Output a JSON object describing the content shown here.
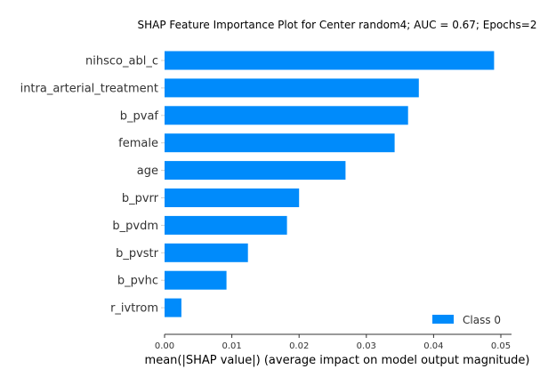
{
  "chart_data": {
    "type": "bar",
    "orientation": "horizontal",
    "title": "SHAP Feature Importance Plot for Center random4; AUC = 0.67; Epochs=2",
    "xlabel": "mean(|SHAP value|) (average impact on model output magnitude)",
    "ylabel": "",
    "categories": [
      "nihsco_abl_c",
      "intra_arterial_treatment",
      "b_pvaf",
      "female",
      "age",
      "b_pvrr",
      "b_pvdm",
      "b_pvstr",
      "b_pvhc",
      "r_ivtrom"
    ],
    "series": [
      {
        "name": "Class 0",
        "color": "#008bfb",
        "values": [
          0.049,
          0.0378,
          0.0362,
          0.0342,
          0.0269,
          0.02,
          0.0182,
          0.0124,
          0.0092,
          0.0025
        ]
      }
    ],
    "xlim": [
      0,
      0.0515
    ],
    "xticks": [
      "0.00",
      "0.01",
      "0.02",
      "0.03",
      "0.04",
      "0.05"
    ],
    "grid": false,
    "legend": "bottom-right"
  }
}
